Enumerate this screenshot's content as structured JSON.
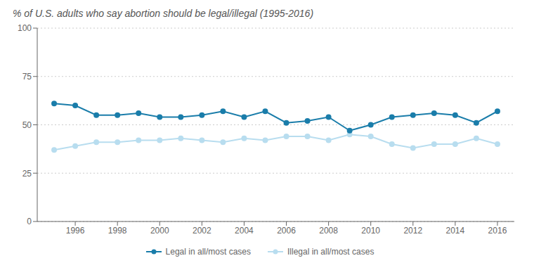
{
  "chart_data": {
    "type": "line",
    "title": "% of U.S. adults who say abortion should be legal/illegal (1995-2016)",
    "x": [
      1995,
      1996,
      1997,
      1998,
      1999,
      2000,
      2001,
      2002,
      2003,
      2004,
      2005,
      2006,
      2007,
      2008,
      2009,
      2010,
      2011,
      2012,
      2013,
      2014,
      2015,
      2016
    ],
    "series": [
      {
        "name": "Legal in all/most cases",
        "color": "#1a7daa",
        "values": [
          61,
          60,
          55,
          55,
          56,
          54,
          54,
          55,
          57,
          54,
          57,
          51,
          52,
          54,
          47,
          50,
          54,
          55,
          56,
          55,
          51,
          57
        ]
      },
      {
        "name": "Illegal in all/most cases",
        "color": "#b8ddef",
        "values": [
          37,
          39,
          41,
          41,
          42,
          42,
          43,
          42,
          41,
          43,
          42,
          44,
          44,
          42,
          45,
          44,
          40,
          38,
          40,
          40,
          43,
          40
        ]
      }
    ],
    "xlim": [
      1994.2,
      2016.8
    ],
    "xticks": [
      1996,
      1998,
      2000,
      2002,
      2004,
      2006,
      2008,
      2010,
      2012,
      2014,
      2016
    ],
    "ylim": [
      0,
      100
    ],
    "yticks": [
      0,
      25,
      50,
      75,
      100
    ],
    "grid": true,
    "legend": "bottom",
    "marker": "circle"
  }
}
